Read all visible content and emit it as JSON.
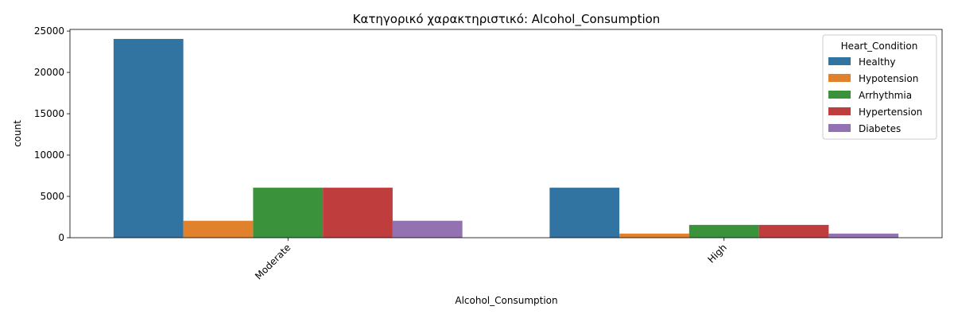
{
  "chart_data": {
    "type": "bar",
    "title": "Κατηγορικό χαρακτηριστικό: Alcohol_Consumption",
    "xlabel": "Alcohol_Consumption",
    "ylabel": "count",
    "categories": [
      "Moderate",
      "High"
    ],
    "series": [
      {
        "name": "Healthy",
        "color": "#3274a1",
        "values": [
          24050,
          6050
        ]
      },
      {
        "name": "Hypotension",
        "color": "#e1812c",
        "values": [
          2050,
          500
        ]
      },
      {
        "name": "Arrhythmia",
        "color": "#3a923a",
        "values": [
          6050,
          1550
        ]
      },
      {
        "name": "Hypertension",
        "color": "#c03d3e",
        "values": [
          6050,
          1550
        ]
      },
      {
        "name": "Diabetes",
        "color": "#9372b2",
        "values": [
          2050,
          500
        ]
      }
    ],
    "ylim": [
      0,
      25200
    ],
    "yticks": [
      0,
      5000,
      10000,
      15000,
      20000,
      25000
    ],
    "legend": {
      "title": "Heart_Condition",
      "placement": "top-right"
    },
    "grid": false
  }
}
